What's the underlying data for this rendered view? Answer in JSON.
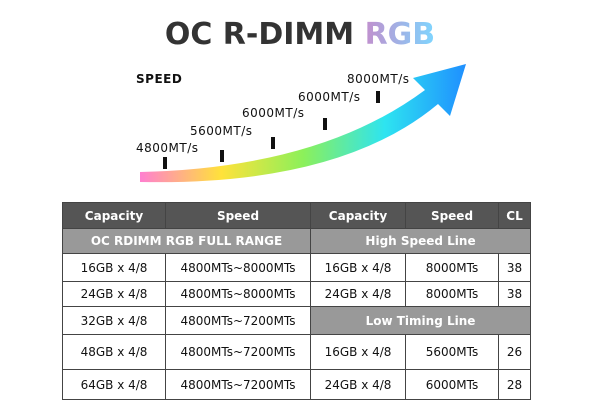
{
  "title": {
    "main": "OC R-DIMM",
    "accent": "RGB"
  },
  "speed_graphic": {
    "label": "SPEED",
    "steps": [
      "4800MT/s",
      "5600MT/s",
      "6000MT/s",
      "6000MT/s",
      "8000MT/s"
    ]
  },
  "table": {
    "header": [
      "Capacity",
      "Speed",
      "Capacity",
      "Speed",
      "CL"
    ],
    "sections": {
      "full_range": "OC RDIMM RGB FULL RANGE",
      "high_speed": "High Speed Line",
      "low_timing": "Low Timing Line"
    },
    "rows": [
      [
        "16GB x 4/8",
        "4800MTs~8000MTs",
        "16GB x 4/8",
        "8000MTs",
        "38"
      ],
      [
        "24GB x 4/8",
        "4800MTs~8000MTs",
        "24GB x 4/8",
        "8000MTs",
        "38"
      ],
      [
        "32GB x 4/8",
        "4800MTs~7200MTs"
      ],
      [
        "48GB x 4/8",
        "4800MTs~7200MTs",
        "16GB x 4/8",
        "5600MTs",
        "26"
      ],
      [
        "64GB x 4/8",
        "4800MTs~7200MTs",
        "24GB x 4/8",
        "6000MTs",
        "28"
      ]
    ]
  }
}
